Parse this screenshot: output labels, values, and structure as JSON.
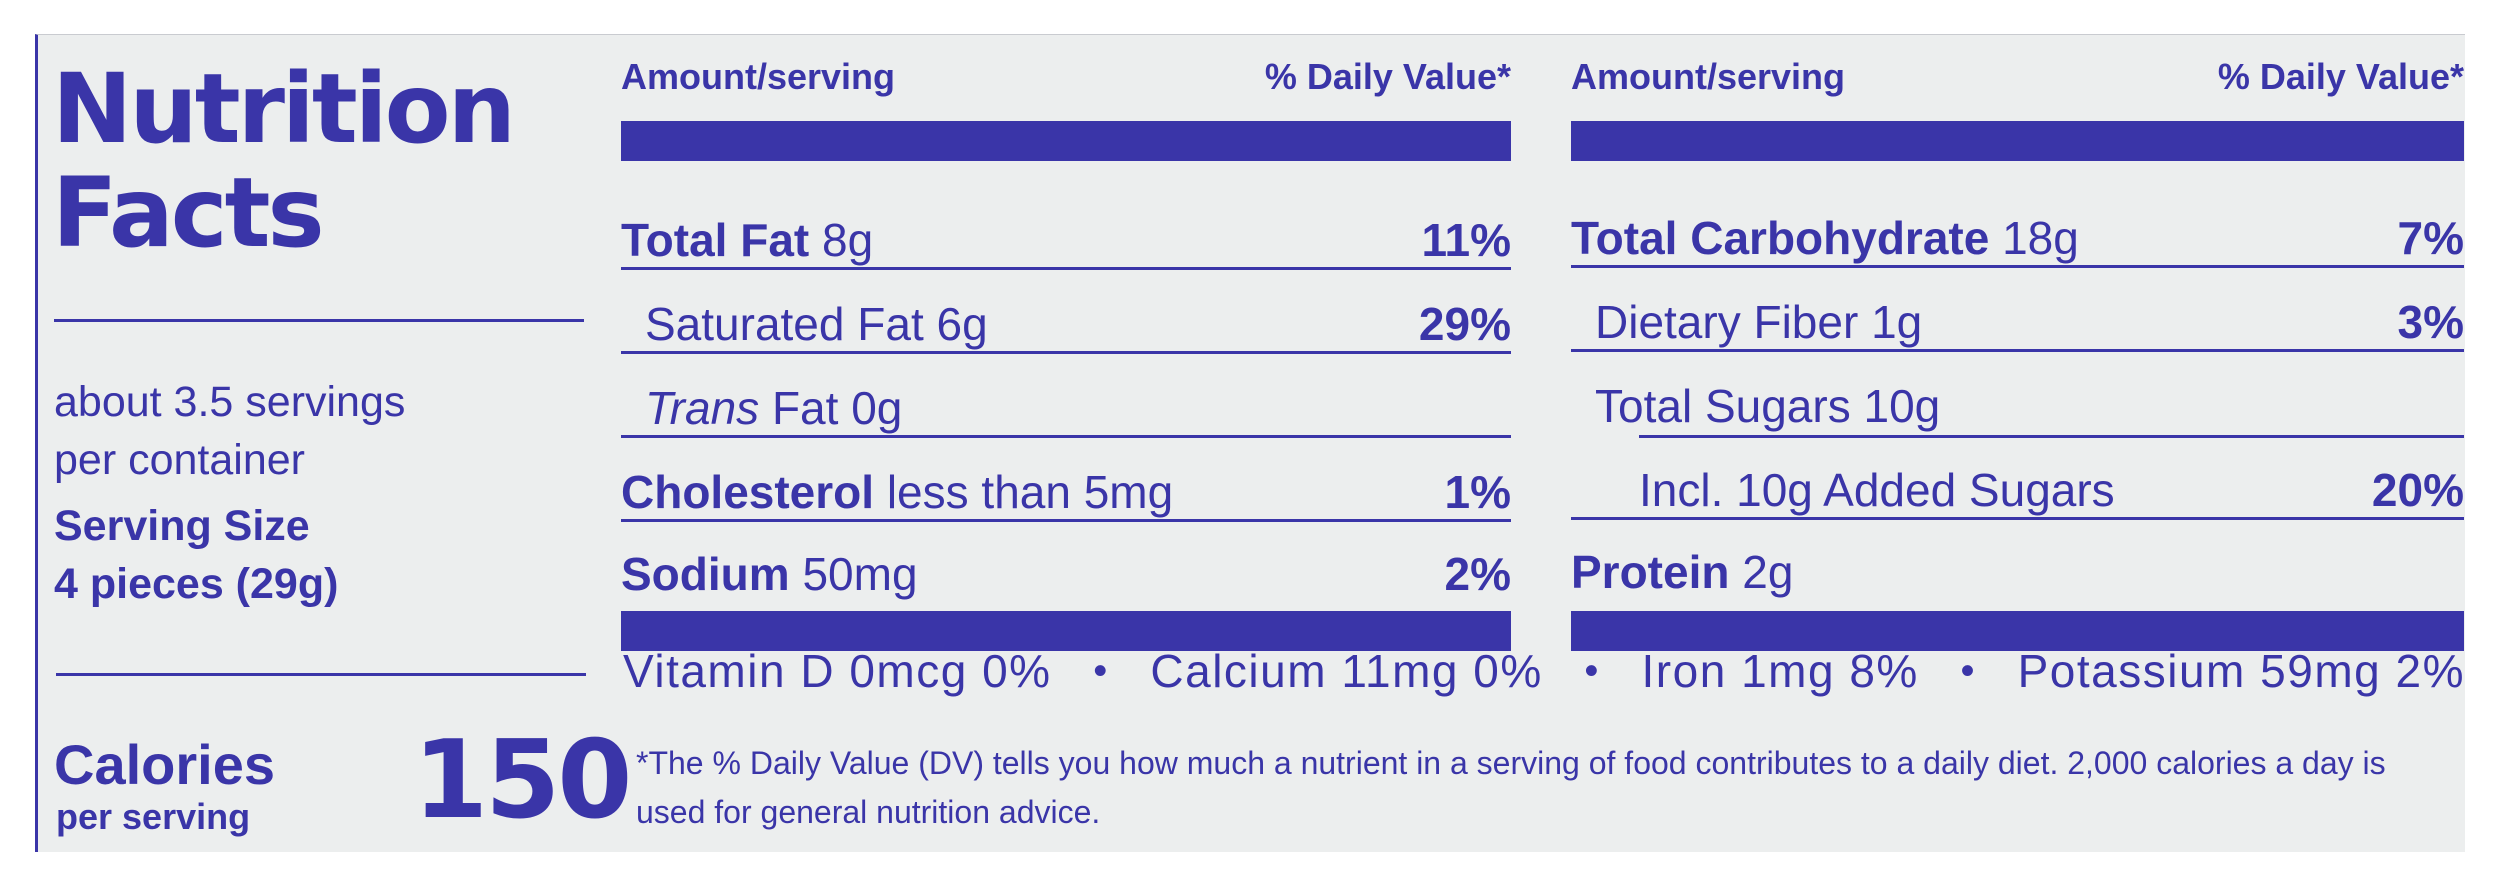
{
  "title": {
    "line1": "Nutrition",
    "line2": "Facts"
  },
  "servings": {
    "per_container_line1": "about 3.5 servings",
    "per_container_line2": "per container",
    "serving_size_label": "Serving Size",
    "serving_size_value": "4 pieces (29g)"
  },
  "calories": {
    "label": "Calories",
    "sublabel": "per serving",
    "value": "150"
  },
  "headers": {
    "amount": "Amount/serving",
    "daily_value": "% Daily Value*"
  },
  "left_table": [
    {
      "name": "Total Fat",
      "amount": "8g",
      "dv": "11%"
    },
    {
      "name": "Saturated Fat",
      "amount": "6g",
      "dv": "29%"
    },
    {
      "name": "Trans",
      "name_rest": "Fat",
      "amount": "0g",
      "dv": ""
    },
    {
      "name": "Cholesterol",
      "amount": "less than 5mg",
      "dv": "1%"
    },
    {
      "name": "Sodium",
      "amount": "50mg",
      "dv": "2%"
    }
  ],
  "right_table": [
    {
      "name": "Total Carbohydrate",
      "amount": "18g",
      "dv": "7%"
    },
    {
      "name": "Dietary Fiber",
      "amount": "1g",
      "dv": "3%"
    },
    {
      "name": "Total Sugars",
      "amount": "10g",
      "dv": ""
    },
    {
      "name": "Incl. 10g Added Sugars",
      "amount": "",
      "dv": "20%"
    },
    {
      "name": "Protein",
      "amount": "2g",
      "dv": ""
    }
  ],
  "vitamins": [
    {
      "text": "Vitamin D 0mcg 0%"
    },
    {
      "text": "Calcium 11mg 0%"
    },
    {
      "text": "Iron 1mg 8%"
    },
    {
      "text": "Potassium 59mg 2%"
    }
  ],
  "separator": "•",
  "footnote": "*The % Daily Value (DV) tells you how much a nutrient in a serving of food contributes to a daily diet. 2,000 calories a day is used for general nutrition advice.",
  "colors": {
    "ink": "#3a35a8",
    "background": "#eceeee"
  }
}
